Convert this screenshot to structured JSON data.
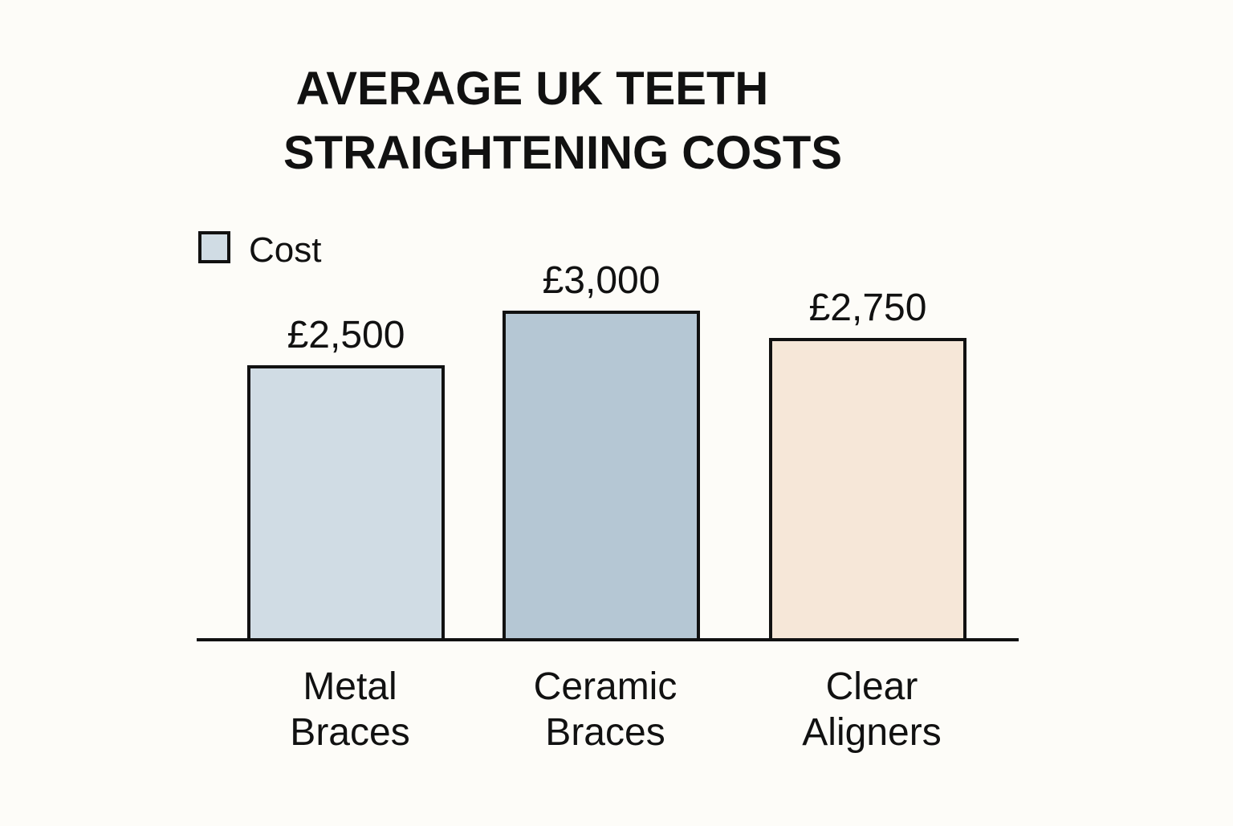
{
  "chart_data": {
    "type": "bar",
    "title_lines": [
      "AVERAGE UK TEETH",
      "STRAIGHTENING COSTS"
    ],
    "categories": [
      [
        "Metal",
        "Braces"
      ],
      [
        "Ceramic",
        "Braces"
      ],
      [
        "Clear",
        "Aligners"
      ]
    ],
    "series": [
      {
        "name": "Cost",
        "values": [
          2500,
          3000,
          2750
        ],
        "value_labels": [
          "£2,500",
          "£3,000",
          "£2,750"
        ]
      }
    ],
    "bar_colors": [
      "#d0dce4",
      "#b5c7d4",
      "#f6e7d8"
    ],
    "legend": {
      "label": "Cost",
      "color": "#d0dce4",
      "placement": "top-left"
    },
    "xlabel": "",
    "ylabel": "",
    "ylim": [
      0,
      3000
    ],
    "grid": false,
    "y_axis_visible": false
  }
}
